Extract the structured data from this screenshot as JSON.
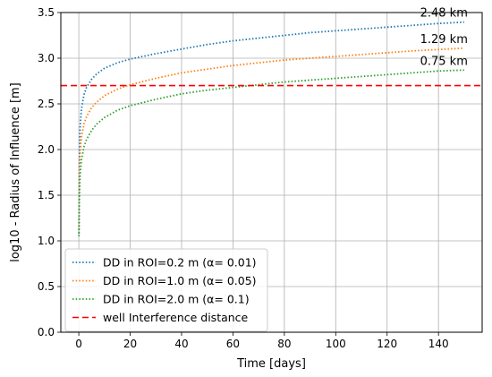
{
  "chart_data": {
    "type": "line",
    "xlabel": "Time [days]",
    "ylabel": "log10 - Radius of Influence [m]",
    "xlim": [
      -7,
      157
    ],
    "ylim": [
      0,
      3.5
    ],
    "xticks": [
      0,
      20,
      40,
      60,
      80,
      100,
      120,
      140
    ],
    "yticks": [
      0.0,
      0.5,
      1.0,
      1.5,
      2.0,
      2.5,
      3.0,
      3.5
    ],
    "grid": true,
    "legend_position": "lower-left",
    "series": [
      {
        "name": "DD in ROI=0.2 m (α= 0.01)",
        "style": "dotted",
        "color": "#1f77b4",
        "end_label": "2.48 km",
        "x": [
          0.05,
          0.2,
          0.5,
          1,
          2,
          3,
          5,
          7,
          10,
          15,
          20,
          30,
          40,
          50,
          60,
          70,
          80,
          90,
          100,
          110,
          120,
          130,
          140,
          150
        ],
        "y": [
          1.08,
          1.85,
          2.24,
          2.44,
          2.6,
          2.68,
          2.77,
          2.83,
          2.89,
          2.95,
          2.99,
          3.05,
          3.1,
          3.15,
          3.19,
          3.22,
          3.25,
          3.28,
          3.3,
          3.32,
          3.34,
          3.36,
          3.38,
          3.395
        ]
      },
      {
        "name": "DD in ROI=1.0 m (α= 0.05)",
        "style": "dotted",
        "color": "#ff7f0e",
        "end_label": "1.29 km",
        "x": [
          0.05,
          0.2,
          0.5,
          1,
          2,
          3,
          5,
          7,
          10,
          15,
          20,
          30,
          40,
          50,
          60,
          70,
          80,
          90,
          100,
          110,
          120,
          130,
          140,
          150
        ],
        "y": [
          1.12,
          1.65,
          1.96,
          2.13,
          2.28,
          2.36,
          2.46,
          2.52,
          2.59,
          2.66,
          2.71,
          2.78,
          2.84,
          2.88,
          2.92,
          2.95,
          2.98,
          3.0,
          3.02,
          3.04,
          3.06,
          3.08,
          3.095,
          3.11
        ]
      },
      {
        "name": "DD in ROI=2.0 m (α= 0.1)",
        "style": "dotted",
        "color": "#2ca02c",
        "end_label": "0.75 km",
        "x": [
          0.05,
          0.2,
          0.5,
          1,
          2,
          3,
          5,
          7,
          10,
          15,
          20,
          30,
          40,
          50,
          60,
          70,
          80,
          90,
          100,
          110,
          120,
          130,
          140,
          150
        ],
        "y": [
          1.05,
          1.45,
          1.72,
          1.88,
          2.03,
          2.11,
          2.21,
          2.28,
          2.35,
          2.43,
          2.48,
          2.55,
          2.61,
          2.65,
          2.68,
          2.71,
          2.74,
          2.76,
          2.78,
          2.8,
          2.82,
          2.84,
          2.86,
          2.87
        ]
      },
      {
        "name": "well Interference distance",
        "style": "dashed",
        "color": "#ff0000",
        "x": [
          -7,
          157
        ],
        "y": [
          2.7,
          2.7
        ]
      }
    ]
  }
}
